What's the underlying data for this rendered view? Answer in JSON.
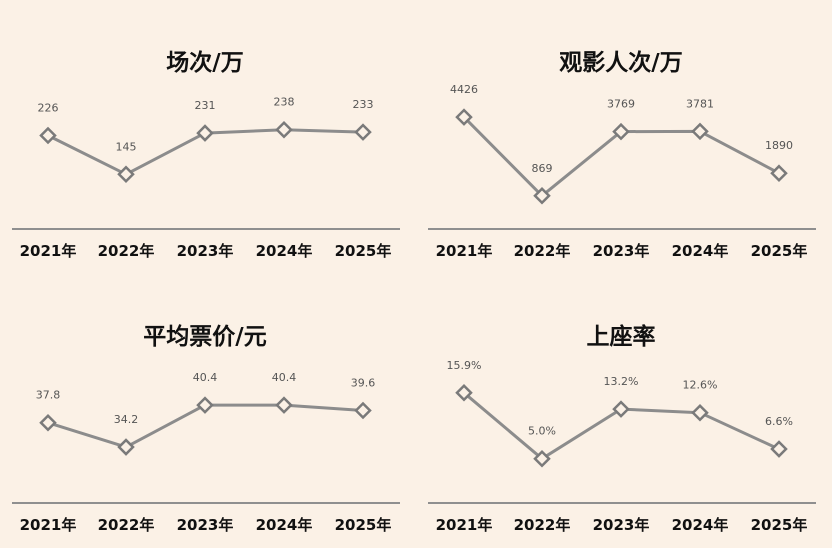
{
  "chart_data": [
    {
      "type": "line",
      "title": "场次/万",
      "categories": [
        "2021年",
        "2022年",
        "2023年",
        "2024年",
        "2025年"
      ],
      "values": [
        226,
        145,
        231,
        238,
        233
      ],
      "labels": [
        "226",
        "145",
        "231",
        "238",
        "233"
      ],
      "ylim": [
        60,
        300
      ],
      "xlabel": "",
      "ylabel": "",
      "grid": false
    },
    {
      "type": "line",
      "title": "观影人次/万",
      "categories": [
        "2021年",
        "2022年",
        "2023年",
        "2024年",
        "2025年"
      ],
      "values": [
        4426,
        869,
        3769,
        3781,
        1890
      ],
      "labels": [
        "4426",
        "869",
        "3769",
        "3781",
        "1890"
      ],
      "ylim": [
        0,
        5200
      ],
      "xlabel": "",
      "ylabel": "",
      "grid": false
    },
    {
      "type": "line",
      "title": "平均票价/元",
      "categories": [
        "2021年",
        "2022年",
        "2023年",
        "2024年",
        "2025年"
      ],
      "values": [
        37.8,
        34.2,
        40.4,
        40.4,
        39.6
      ],
      "labels": [
        "37.8",
        "34.2",
        "40.4",
        "40.4",
        "39.6"
      ],
      "ylim": [
        28,
        45
      ],
      "xlabel": "",
      "ylabel": "",
      "grid": false
    },
    {
      "type": "line",
      "title": "上座率",
      "categories": [
        "2021年",
        "2022年",
        "2023年",
        "2024年",
        "2025年"
      ],
      "values": [
        15.9,
        5.0,
        13.2,
        12.6,
        6.6
      ],
      "labels": [
        "15.9%",
        "5.0%",
        "13.2%",
        "12.6%",
        "6.6%"
      ],
      "ylim": [
        0,
        19
      ],
      "xlabel": "",
      "ylabel": "",
      "grid": false
    }
  ]
}
